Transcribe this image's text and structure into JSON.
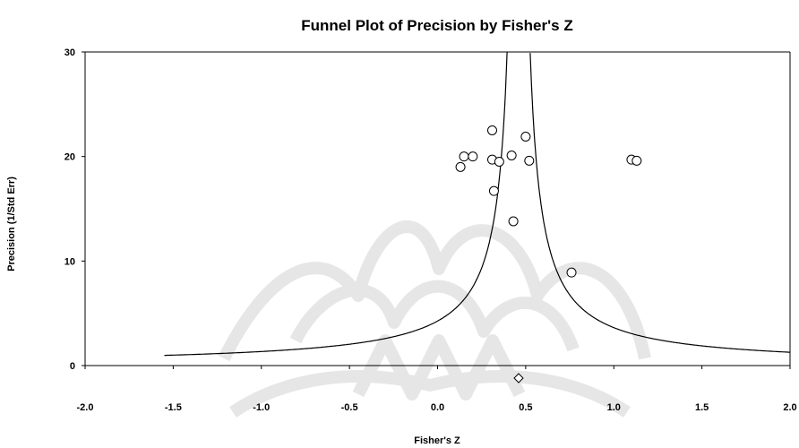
{
  "chart_data": {
    "type": "scatter",
    "title": "Funnel Plot of Precision by Fisher's Z",
    "xlabel": "Fisher's Z",
    "ylabel": "Precision (1/Std Err)",
    "xlim": [
      -2.0,
      2.0
    ],
    "ylim": [
      0,
      30
    ],
    "x_ticks": [
      "-2.0",
      "-1.5",
      "-1.0",
      "-0.5",
      "0.0",
      "0.5",
      "1.0",
      "1.5",
      "2.0"
    ],
    "y_ticks": [
      "0",
      "10",
      "20",
      "30"
    ],
    "grid": false,
    "legend": "none",
    "points": [
      {
        "x": 0.13,
        "y": 19.0
      },
      {
        "x": 0.15,
        "y": 20.0
      },
      {
        "x": 0.2,
        "y": 20.0
      },
      {
        "x": 0.31,
        "y": 19.7
      },
      {
        "x": 0.35,
        "y": 19.5
      },
      {
        "x": 0.31,
        "y": 22.5
      },
      {
        "x": 0.32,
        "y": 16.7
      },
      {
        "x": 0.42,
        "y": 20.1
      },
      {
        "x": 0.43,
        "y": 13.8
      },
      {
        "x": 0.5,
        "y": 21.9
      },
      {
        "x": 0.52,
        "y": 19.6
      },
      {
        "x": 0.76,
        "y": 8.9
      },
      {
        "x": 1.1,
        "y": 19.7
      },
      {
        "x": 1.13,
        "y": 19.6
      }
    ],
    "summary_effect": {
      "x": 0.46,
      "marker": "diamond"
    },
    "funnel": {
      "center": 0.46,
      "z": 1.96
    }
  }
}
